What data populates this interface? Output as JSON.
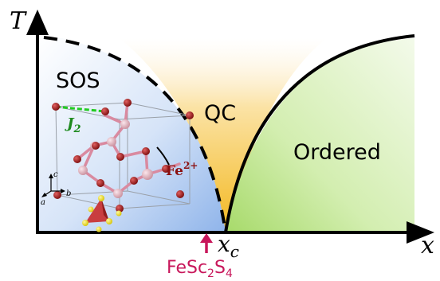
{
  "axes": {
    "y_label": "T",
    "x_label": "x"
  },
  "regions": {
    "sos_label": "SOS",
    "qc_label": "QC",
    "ordered_label": "Ordered"
  },
  "critical_point": {
    "label_main": "x",
    "label_sub": "c",
    "compound_part1": "FeSc",
    "compound_sub1": "2",
    "compound_part2": "S",
    "compound_sub2": "4"
  },
  "inset": {
    "coupling_label": "J",
    "coupling_sub": "2",
    "ion_label": "Fe",
    "ion_sup": "2+",
    "axis_a": "a",
    "axis_b": "b",
    "axis_c": "c"
  },
  "colors": {
    "sos_fill": "#aecbf2",
    "qc_fill": "#f5c63a",
    "ordered_fill": "#b6e07e",
    "boundary": "#000000",
    "arrow": "#c8175b",
    "compound_text": "#c8175b",
    "j2_text": "#1e8a1e",
    "j2_bond": "#22cc22",
    "fe_atom": "#a31515",
    "sc_atom": "#e8b3c0",
    "s_atom": "#f2e21a",
    "tetra": "#c92b2b"
  }
}
